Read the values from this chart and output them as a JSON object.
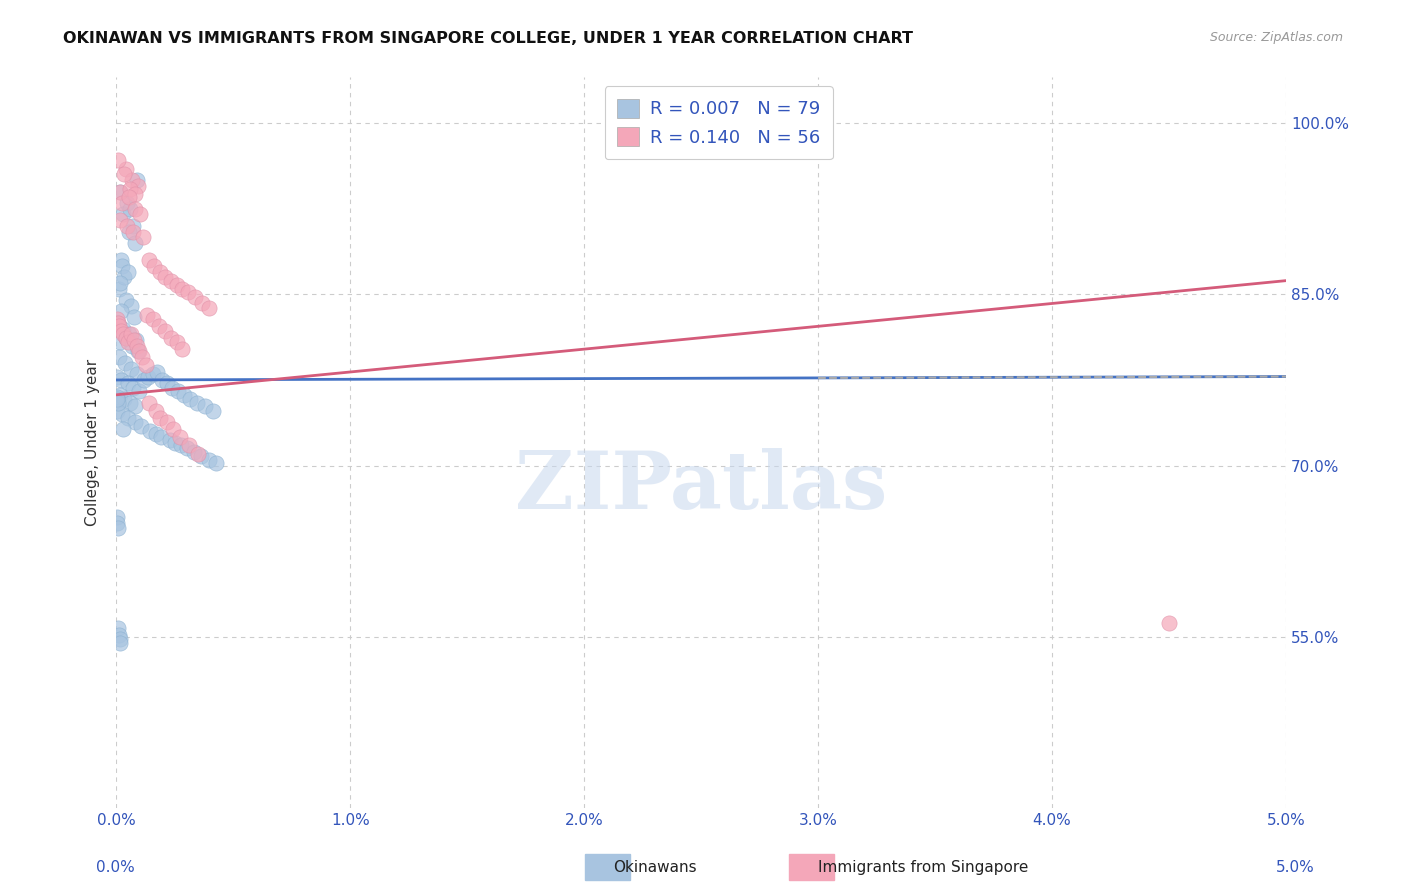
{
  "title": "OKINAWAN VS IMMIGRANTS FROM SINGAPORE COLLEGE, UNDER 1 YEAR CORRELATION CHART",
  "source": "Source: ZipAtlas.com",
  "ylabel": "College, Under 1 year",
  "xmin": 0.0,
  "xmax": 0.05,
  "ymin": 0.4,
  "ymax": 1.04,
  "yticks": [
    0.55,
    0.7,
    0.85,
    1.0
  ],
  "ytick_labels": [
    "55.0%",
    "70.0%",
    "85.0%",
    "100.0%"
  ],
  "xticks": [
    0.0,
    0.01,
    0.02,
    0.03,
    0.04,
    0.05
  ],
  "xtick_labels": [
    "0.0%",
    "1.0%",
    "2.0%",
    "3.0%",
    "4.0%",
    "5.0%"
  ],
  "r_okinawan": 0.007,
  "n_okinawan": 79,
  "r_singapore": 0.14,
  "n_singapore": 56,
  "color_okinawan": "#a8c4e0",
  "color_singapore": "#f4a7b9",
  "line_color_okinawan": "#4472c4",
  "line_color_singapore": "#d45b7a",
  "watermark": "ZIPatlas",
  "legend_label_okinawan": "Okinawans",
  "legend_label_singapore": "Immigrants from Singapore",
  "ok_x": [
    0.0002,
    0.00045,
    0.00015,
    0.0007,
    0.0003,
    0.00055,
    0.0008,
    0.00025,
    0.0006,
    0.0001,
    0.00035,
    0.0005,
    0.0009,
    0.00015,
    0.0004,
    0.00065,
    0.0002,
    0.00075,
    8e-05,
    0.0003,
    0.00055,
    0.00085,
    0.00018,
    0.00042,
    0.00068,
    0.00095,
    0.00012,
    0.00038,
    0.00062,
    0.00088,
    5e-05,
    0.00022,
    0.00048,
    0.00072,
    0.00098,
    0.00016,
    0.00032,
    0.00058,
    0.00082,
    3e-05,
    0.00025,
    0.00052,
    0.00078,
    0.00105,
    0.00028,
    0.00118,
    0.00135,
    0.00155,
    0.00175,
    0.00195,
    0.00215,
    0.0024,
    0.00265,
    0.0029,
    0.00315,
    0.00345,
    0.0038,
    0.00415,
    0.00145,
    0.00168,
    0.00192,
    0.00228,
    0.00252,
    0.00278,
    0.00302,
    0.00332,
    0.00362,
    0.00396,
    0.00428,
    3e-05,
    6e-05,
    1e-05,
    2e-05,
    4e-05,
    7e-05,
    9e-05,
    0.00011,
    0.00014,
    0.00017
  ],
  "ok_y": [
    0.88,
    0.93,
    0.94,
    0.91,
    0.92,
    0.905,
    0.895,
    0.875,
    0.925,
    0.855,
    0.865,
    0.87,
    0.95,
    0.86,
    0.845,
    0.84,
    0.835,
    0.83,
    0.825,
    0.82,
    0.815,
    0.81,
    0.808,
    0.812,
    0.805,
    0.8,
    0.795,
    0.79,
    0.785,
    0.78,
    0.778,
    0.775,
    0.772,
    0.768,
    0.765,
    0.762,
    0.758,
    0.755,
    0.752,
    0.748,
    0.745,
    0.742,
    0.738,
    0.735,
    0.732,
    0.775,
    0.778,
    0.78,
    0.782,
    0.775,
    0.772,
    0.768,
    0.765,
    0.762,
    0.758,
    0.755,
    0.752,
    0.748,
    0.73,
    0.728,
    0.725,
    0.722,
    0.72,
    0.718,
    0.715,
    0.712,
    0.708,
    0.705,
    0.702,
    0.76,
    0.755,
    0.758,
    0.655,
    0.65,
    0.645,
    0.558,
    0.552,
    0.548,
    0.545
  ],
  "sg_x": [
    0.00018,
    0.00042,
    0.00068,
    0.00092,
    8e-05,
    0.00035,
    0.00058,
    0.00082,
    0.00025,
    0.00055,
    0.00078,
    0.00102,
    0.00015,
    0.00045,
    0.00072,
    0.00115,
    0.00138,
    0.00162,
    0.00185,
    0.0021,
    0.00235,
    0.00258,
    0.00282,
    0.00305,
    0.00335,
    0.00365,
    0.00395,
    0.0013,
    0.00158,
    0.00182,
    0.00208,
    0.00232,
    0.00258,
    0.00282,
    2e-05,
    6e-05,
    0.00012,
    0.0002,
    0.0003,
    0.0004,
    0.00048,
    0.00062,
    0.00075,
    0.00088,
    0.00098,
    0.0011,
    0.00125,
    0.00142,
    0.00168,
    0.00188,
    0.00215,
    0.00242,
    0.00272,
    0.00312,
    0.00348,
    0.045
  ],
  "sg_y": [
    0.94,
    0.96,
    0.95,
    0.945,
    0.968,
    0.955,
    0.942,
    0.938,
    0.93,
    0.935,
    0.925,
    0.92,
    0.915,
    0.91,
    0.905,
    0.9,
    0.88,
    0.875,
    0.87,
    0.865,
    0.862,
    0.858,
    0.855,
    0.852,
    0.848,
    0.842,
    0.838,
    0.832,
    0.828,
    0.822,
    0.818,
    0.812,
    0.808,
    0.802,
    0.828,
    0.825,
    0.822,
    0.818,
    0.815,
    0.812,
    0.808,
    0.815,
    0.81,
    0.805,
    0.8,
    0.795,
    0.788,
    0.755,
    0.748,
    0.742,
    0.738,
    0.732,
    0.725,
    0.718,
    0.71,
    0.562
  ],
  "line_ok_x0": 0.0,
  "line_ok_x1": 0.05,
  "line_ok_y0": 0.775,
  "line_ok_y1": 0.778,
  "line_sg_x0": 0.0,
  "line_sg_x1": 0.05,
  "line_sg_y0": 0.762,
  "line_sg_y1": 0.862
}
